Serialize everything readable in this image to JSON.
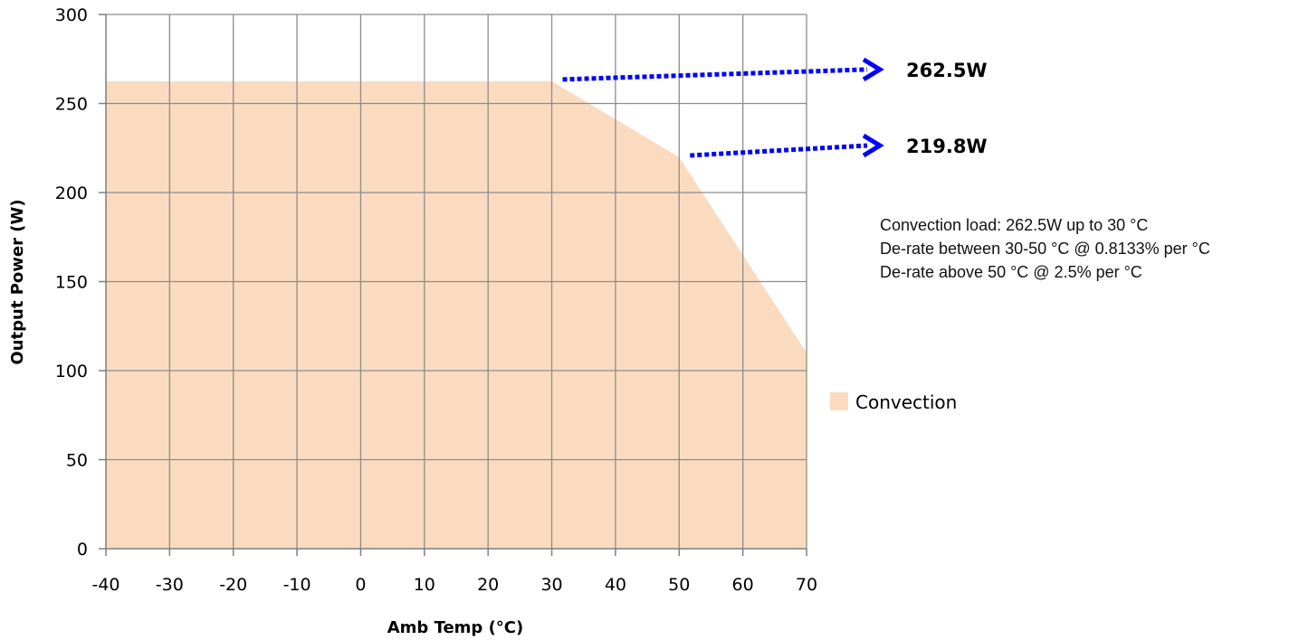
{
  "chart_data": {
    "type": "area",
    "title": "",
    "xlabel": "Amb Temp (°C)",
    "ylabel": "Output Power (W)",
    "xlim": [
      -40,
      70
    ],
    "ylim": [
      0,
      300
    ],
    "x_ticks": [
      -40,
      -30,
      -20,
      -10,
      0,
      10,
      20,
      30,
      40,
      50,
      60,
      70
    ],
    "y_ticks": [
      0,
      50,
      100,
      150,
      200,
      250,
      300
    ],
    "grid": true,
    "legend_position": "right",
    "series": [
      {
        "name": "Convection",
        "color": "#fadbc0",
        "x": [
          -40,
          30,
          50,
          70
        ],
        "values": [
          262.5,
          262.5,
          219.8,
          110
        ]
      }
    ],
    "annotations": [
      {
        "label": "262.5W",
        "x": 30,
        "y": 262.5,
        "color": "#0000ff"
      },
      {
        "label": "219.8W",
        "x": 50,
        "y": 219.8,
        "color": "#0000ff"
      }
    ],
    "notes": [
      "Convection load: 262.5W up to 30 °C",
      "De-rate between 30-50 °C @ 0.8133% per °C",
      "De-rate above 50 °C @ 2.5% per °C"
    ]
  }
}
